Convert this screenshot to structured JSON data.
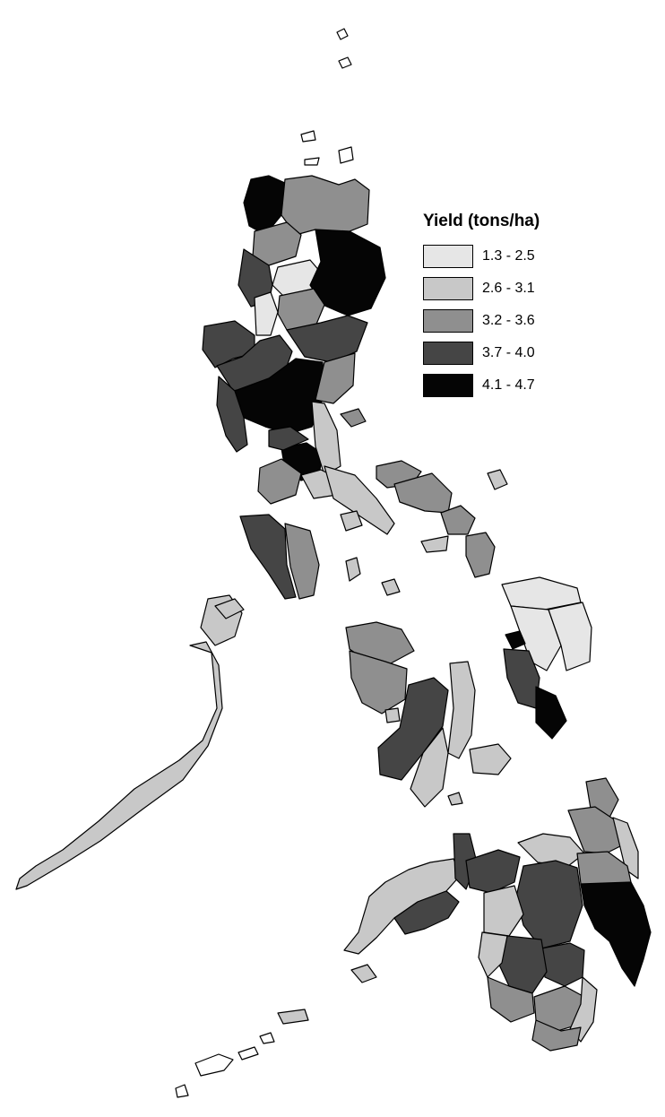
{
  "legend": {
    "title": "Yield (tons/ha)",
    "classes": [
      {
        "label": "1.3 - 2.5",
        "color": "#e6e6e6"
      },
      {
        "label": "2.6 - 3.1",
        "color": "#c8c8c8"
      },
      {
        "label": "3.2 - 3.6",
        "color": "#8f8f8f"
      },
      {
        "label": "3.7 - 4.0",
        "color": "#454545"
      },
      {
        "label": "4.1 - 4.7",
        "color": "#050505"
      }
    ]
  }
}
